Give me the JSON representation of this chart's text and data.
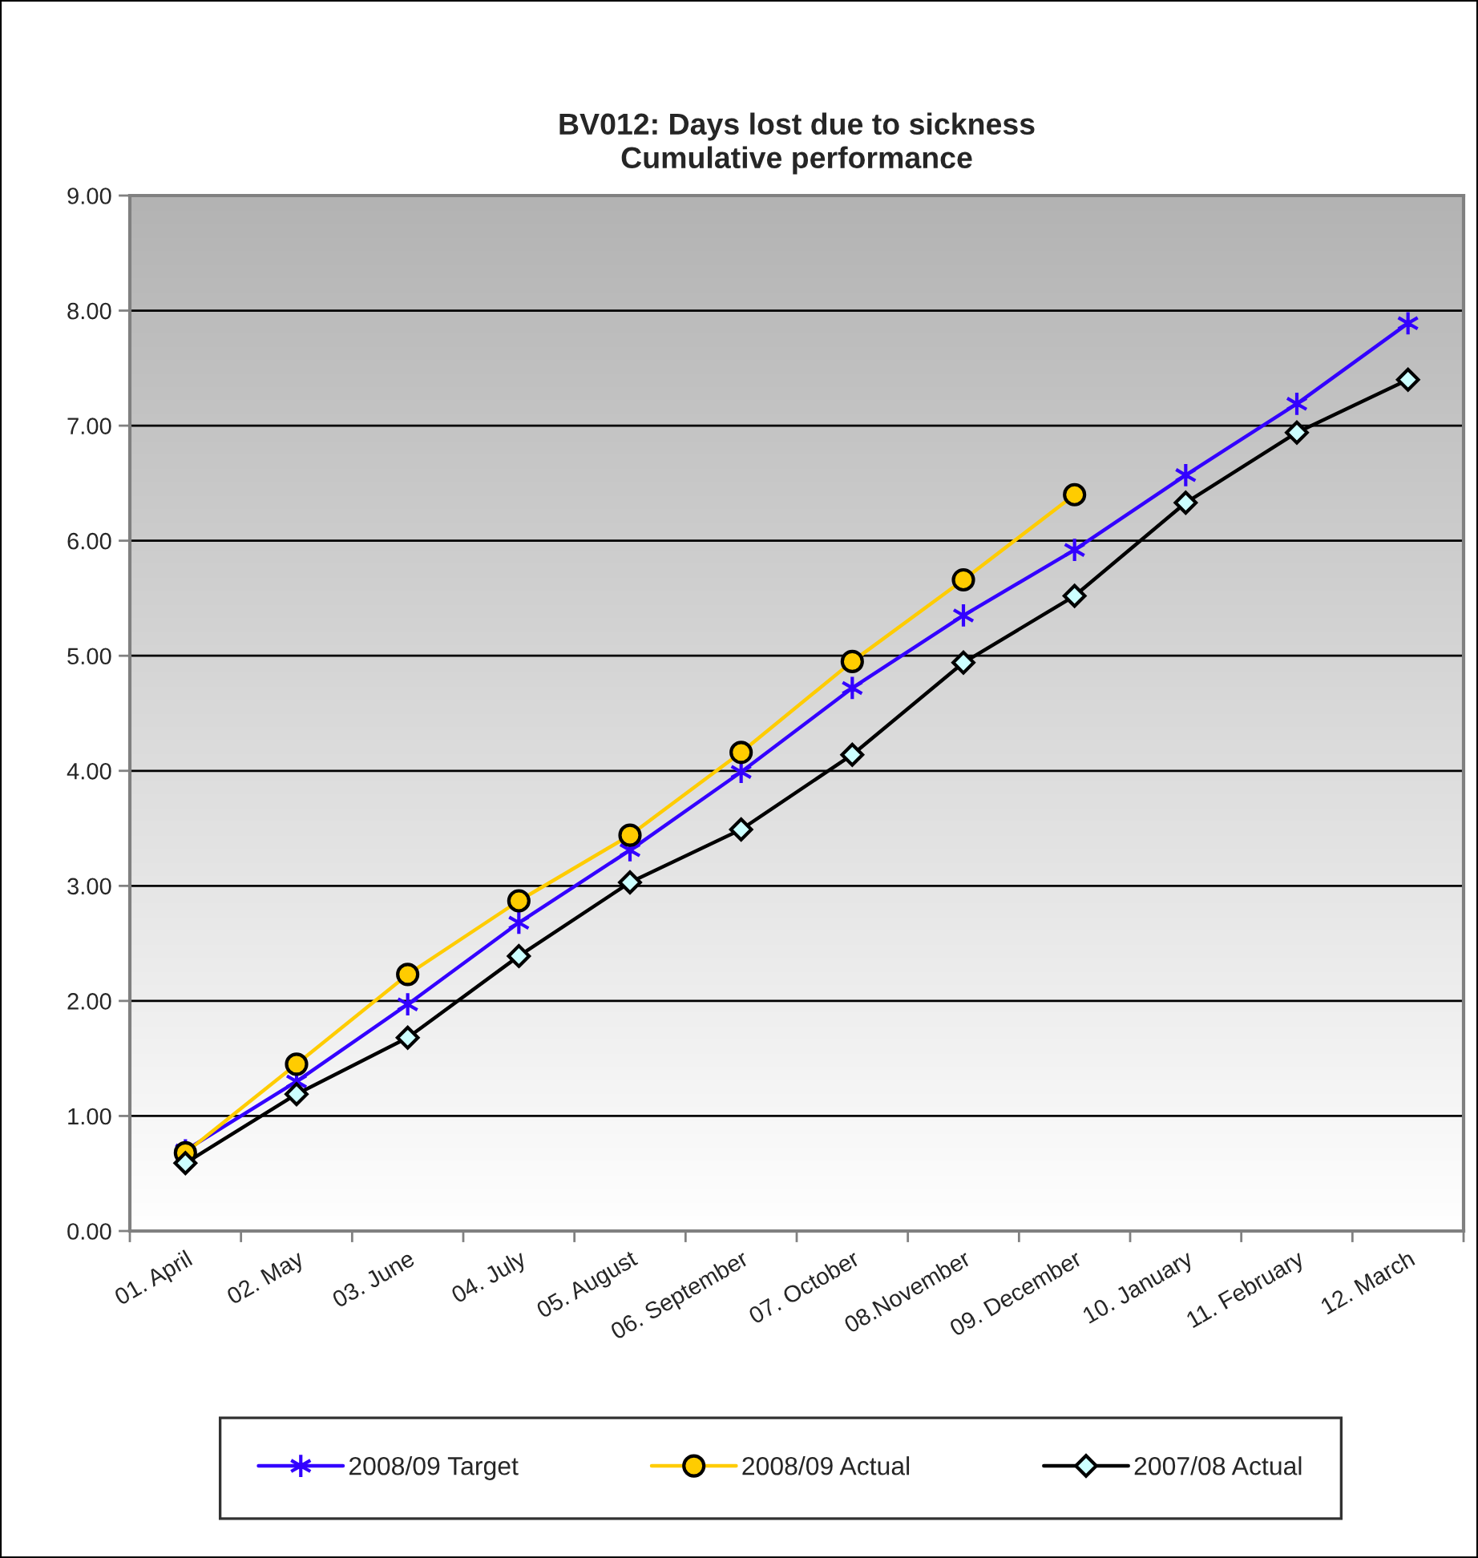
{
  "chart_data": {
    "type": "line",
    "title": "BV012: Days lost due to sickness",
    "subtitle": "Cumulative performance",
    "categories": [
      "01. April",
      "02. May",
      "03. June",
      "04. July",
      "05. August",
      "06. September",
      "07. October",
      "08.November",
      "09. December",
      "10. January",
      "11. February",
      "12. March"
    ],
    "ylim": [
      0,
      9
    ],
    "yticks": [
      {
        "value": 0,
        "label": "0.00"
      },
      {
        "value": 1,
        "label": "1.00"
      },
      {
        "value": 2,
        "label": "2.00"
      },
      {
        "value": 3,
        "label": "3.00"
      },
      {
        "value": 4,
        "label": "4.00"
      },
      {
        "value": 5,
        "label": "5.00"
      },
      {
        "value": 6,
        "label": "6.00"
      },
      {
        "value": 7,
        "label": "7.00"
      },
      {
        "value": 8,
        "label": "8.00"
      },
      {
        "value": 9,
        "label": "9.00"
      }
    ],
    "grid": "y",
    "legend": "bottom",
    "line_style": "solid",
    "series": [
      {
        "name": "2008/09 Target",
        "color": "#3300ff",
        "marker": "cross",
        "values": [
          0.7,
          1.3,
          1.97,
          2.68,
          3.31,
          3.99,
          4.72,
          5.35,
          5.92,
          6.57,
          7.19,
          7.89
        ]
      },
      {
        "name": "2008/09 Actual",
        "color": "#ffcc00",
        "marker": "circle",
        "values": [
          0.68,
          1.45,
          2.23,
          2.87,
          3.44,
          4.16,
          4.95,
          5.66,
          6.4,
          null,
          null,
          null
        ]
      },
      {
        "name": "2007/08 Actual",
        "color": "#000000",
        "marker": "diamond",
        "values": [
          0.59,
          1.19,
          1.68,
          2.39,
          3.03,
          3.49,
          4.14,
          4.94,
          5.52,
          6.33,
          6.94,
          7.4
        ]
      }
    ]
  }
}
